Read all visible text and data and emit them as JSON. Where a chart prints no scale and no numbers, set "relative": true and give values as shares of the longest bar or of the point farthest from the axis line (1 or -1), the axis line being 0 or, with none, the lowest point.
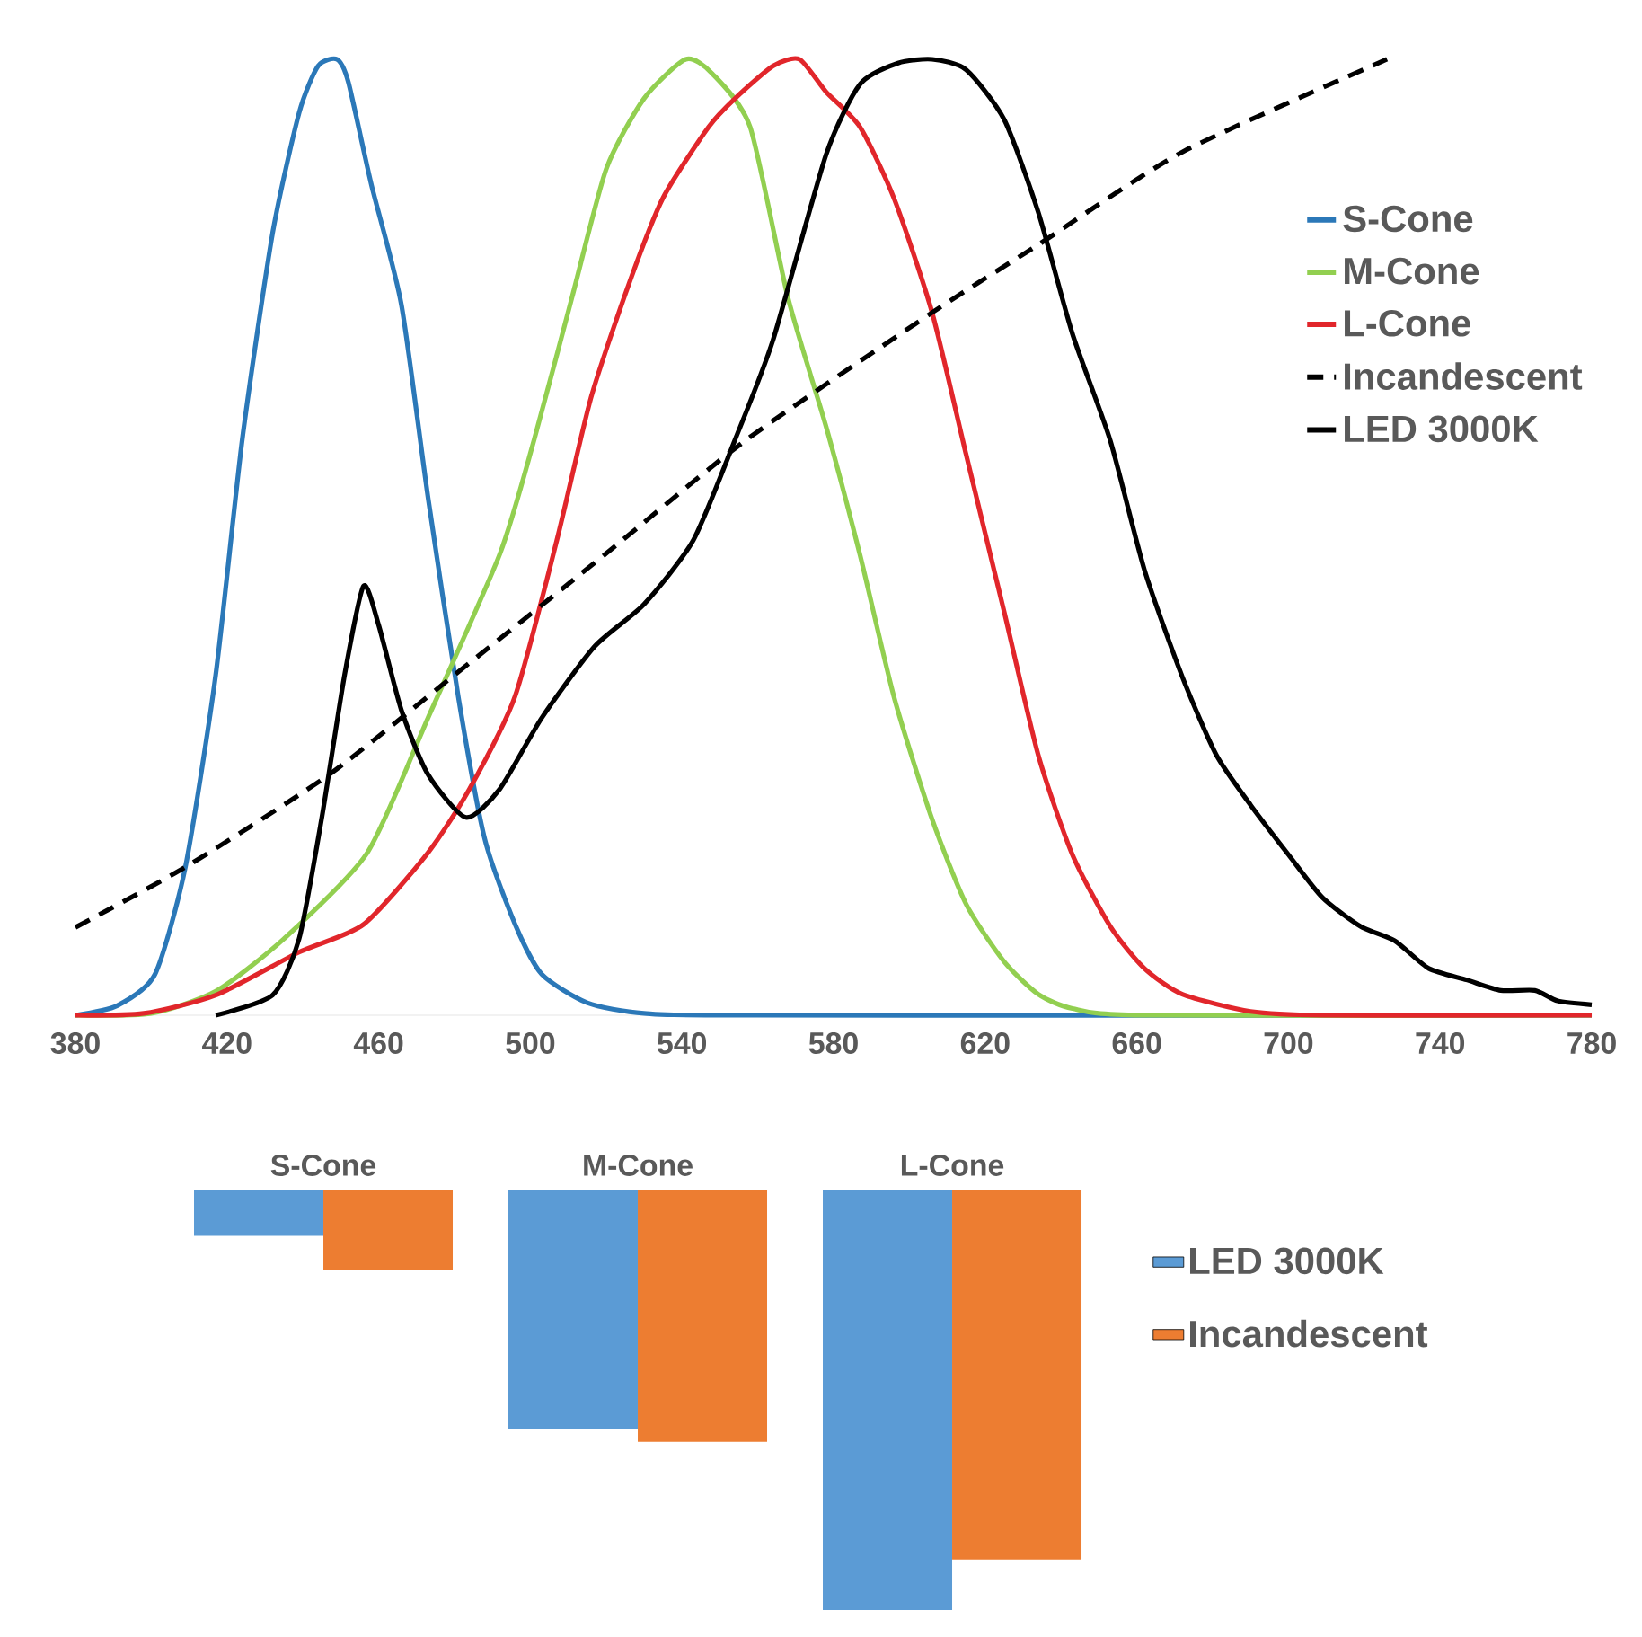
{
  "chart_data": [
    {
      "type": "line",
      "relative": true,
      "xlim": [
        380,
        780
      ],
      "xticks": [
        380,
        420,
        460,
        500,
        540,
        580,
        620,
        660,
        700,
        740,
        780
      ],
      "legend": "top right",
      "series": [
        {
          "name": "S-Cone",
          "color": "#2b78b8",
          "x": [
            380,
            391,
            401,
            409,
            417,
            424,
            432,
            439,
            444,
            449,
            452,
            458,
            466,
            473,
            481,
            488,
            496,
            503,
            515,
            530,
            560,
            780
          ],
          "values": [
            0,
            0.01,
            0.043,
            0.155,
            0.356,
            0.602,
            0.818,
            0.944,
            0.993,
            1.0,
            0.976,
            0.87,
            0.743,
            0.542,
            0.333,
            0.184,
            0.095,
            0.043,
            0.013,
            0.002,
            0,
            0
          ]
        },
        {
          "name": "M-Cone",
          "color": "#92cf50",
          "x": [
            380,
            400,
            417,
            435,
            457,
            473,
            492,
            501,
            511,
            520,
            530,
            541,
            548,
            558,
            568,
            578,
            587,
            596,
            606,
            615,
            625,
            634,
            643,
            662,
            780
          ],
          "values": [
            0,
            0.002,
            0.025,
            0.08,
            0.17,
            0.311,
            0.483,
            0.602,
            0.751,
            0.885,
            0.959,
            1.0,
            0.985,
            0.929,
            0.75,
            0.616,
            0.481,
            0.332,
            0.205,
            0.116,
            0.056,
            0.022,
            0.007,
            0,
            0
          ]
        },
        {
          "name": "L-Cone",
          "color": "#e1262b",
          "x": [
            380,
            398,
            417,
            439,
            456,
            473,
            484,
            496,
            507,
            516,
            526,
            535,
            547,
            554,
            564,
            571,
            578,
            587,
            596,
            606,
            615,
            625,
            634,
            643,
            653,
            662,
            672,
            690,
            709,
            780
          ],
          "values": [
            0,
            0.002,
            0.021,
            0.066,
            0.095,
            0.17,
            0.237,
            0.334,
            0.497,
            0.646,
            0.765,
            0.855,
            0.929,
            0.959,
            0.993,
            1.0,
            0.966,
            0.929,
            0.854,
            0.735,
            0.586,
            0.422,
            0.272,
            0.168,
            0.093,
            0.049,
            0.022,
            0.004,
            0,
            0
          ]
        },
        {
          "name": "Incandescent",
          "color": "#000000",
          "line_style": "dashed",
          "x": [
            380,
            409,
            447,
            480,
            520,
            557,
            606,
            634,
            672,
            726
          ],
          "values": [
            0.092,
            0.155,
            0.252,
            0.356,
            0.483,
            0.602,
            0.735,
            0.806,
            0.903,
            1.0
          ]
        },
        {
          "name": "LED 3000K",
          "color": "#000000",
          "x": [
            417,
            432,
            439,
            445,
            451,
            456,
            460,
            466,
            473,
            483,
            492,
            503,
            517,
            530,
            543,
            554,
            564,
            578,
            587,
            597,
            606,
            615,
            625,
            634,
            643,
            653,
            662,
            672,
            681,
            690,
            700,
            709,
            719,
            728,
            737,
            747,
            756,
            765,
            771,
            780
          ],
          "values": [
            0,
            0.021,
            0.08,
            0.207,
            0.356,
            0.449,
            0.408,
            0.319,
            0.252,
            0.207,
            0.237,
            0.311,
            0.386,
            0.43,
            0.497,
            0.602,
            0.706,
            0.9,
            0.974,
            0.996,
            1.0,
            0.989,
            0.937,
            0.84,
            0.713,
            0.601,
            0.466,
            0.354,
            0.272,
            0.22,
            0.168,
            0.123,
            0.093,
            0.078,
            0.049,
            0.037,
            0.026,
            0.026,
            0.015,
            0.011
          ]
        }
      ]
    },
    {
      "type": "bar",
      "relative": true,
      "legend": "right",
      "categories": [
        "S-Cone",
        "M-Cone",
        "L-Cone"
      ],
      "series": [
        {
          "name": "LED 3000K",
          "color": "#5b9bd5",
          "values": [
            -0.11,
            -0.57,
            -1.0
          ]
        },
        {
          "name": "Incandescent",
          "color": "#ed7d31",
          "values": [
            -0.19,
            -0.6,
            -0.88
          ]
        }
      ]
    }
  ]
}
